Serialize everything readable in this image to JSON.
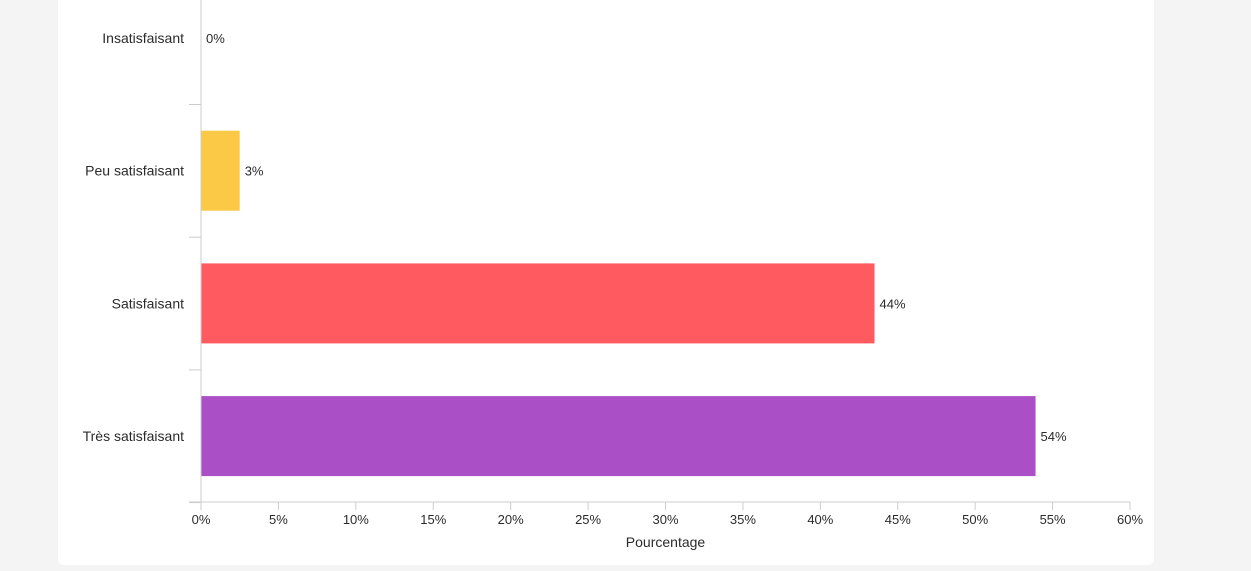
{
  "chart_data": {
    "type": "bar",
    "orientation": "horizontal",
    "categories": [
      "Insatisfaisant",
      "Peu satisfaisant",
      "Satisfaisant",
      "Très satisfaisant"
    ],
    "values": [
      0,
      2.5,
      43.5,
      53.9
    ],
    "data_labels": [
      "0%",
      "3%",
      "44%",
      "54%"
    ],
    "colors": [
      "#f5c242",
      "#fcc946",
      "#ff5a5f",
      "#ab4fc6"
    ],
    "xlabel": "Pourcentage",
    "ylabel": "",
    "xlim": [
      0,
      60
    ],
    "x_ticks": [
      0,
      5,
      10,
      15,
      20,
      25,
      30,
      35,
      40,
      45,
      50,
      55,
      60
    ],
    "x_tick_labels": [
      "0%",
      "5%",
      "10%",
      "15%",
      "20%",
      "25%",
      "30%",
      "35%",
      "40%",
      "45%",
      "50%",
      "55%",
      "60%"
    ],
    "grid": false,
    "legend": "none"
  }
}
